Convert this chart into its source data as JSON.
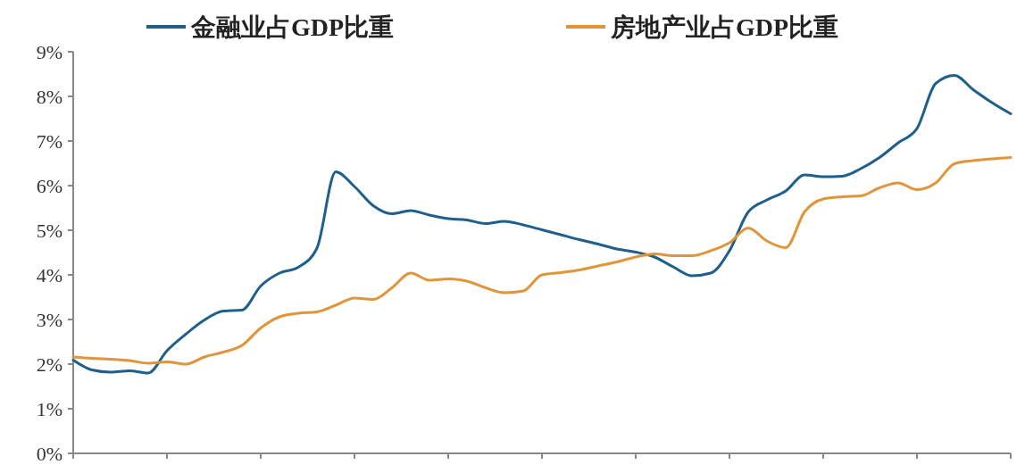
{
  "chart_data": {
    "type": "line",
    "categories": [
      null,
      null,
      null,
      null,
      null,
      null,
      null,
      null,
      null,
      null,
      null,
      null,
      null,
      null,
      null,
      null,
      null,
      null,
      null,
      null,
      null,
      null,
      null,
      null,
      null,
      null,
      null,
      null,
      null,
      null,
      null,
      null,
      null,
      null,
      null,
      null,
      null,
      null,
      null,
      null,
      null,
      null,
      null,
      null,
      null,
      null,
      null,
      null,
      null,
      null,
      null
    ],
    "series": [
      {
        "name": "金融业占GDP比重",
        "color": "#1f5f8b",
        "values": [
          2.09,
          1.87,
          1.82,
          1.85,
          1.8,
          2.3,
          2.67,
          2.99,
          3.19,
          3.21,
          3.75,
          4.04,
          4.17,
          4.6,
          6.31,
          5.98,
          5.55,
          5.37,
          5.44,
          5.34,
          5.26,
          5.23,
          5.15,
          5.2,
          5.12,
          5.01,
          4.9,
          4.79,
          4.69,
          4.58,
          4.51,
          4.4,
          4.18,
          3.98,
          4.04,
          4.54,
          5.41,
          5.68,
          5.88,
          6.24,
          6.2,
          6.21,
          6.38,
          6.63,
          6.96,
          7.28,
          8.29,
          8.47,
          8.15,
          7.86,
          7.61
        ]
      },
      {
        "name": "房地产业占GDP比重",
        "color": "#e0953a",
        "values": [
          2.16,
          2.13,
          2.11,
          2.08,
          2.02,
          2.05,
          2.0,
          2.16,
          2.27,
          2.42,
          2.81,
          3.06,
          3.14,
          3.17,
          3.32,
          3.48,
          3.45,
          3.71,
          4.04,
          3.88,
          3.91,
          3.86,
          3.71,
          3.6,
          3.64,
          4.0,
          4.05,
          4.11,
          4.2,
          4.29,
          4.4,
          4.47,
          4.43,
          4.43,
          4.54,
          4.72,
          5.05,
          4.76,
          4.61,
          5.41,
          5.7,
          5.75,
          5.77,
          5.95,
          6.06,
          5.91,
          6.06,
          6.49,
          6.56,
          6.6,
          6.63
        ]
      }
    ],
    "ylim": [
      0,
      9
    ],
    "yticks": [
      {
        "value": 0,
        "label": "0%"
      },
      {
        "value": 1,
        "label": "1%"
      },
      {
        "value": 2,
        "label": "2%"
      },
      {
        "value": 3,
        "label": "3%"
      },
      {
        "value": 4,
        "label": "4%"
      },
      {
        "value": 5,
        "label": "5%"
      },
      {
        "value": 6,
        "label": "6%"
      },
      {
        "value": 7,
        "label": "7%"
      },
      {
        "value": 8,
        "label": "8%"
      },
      {
        "value": 9,
        "label": "9%"
      }
    ],
    "legend": "top",
    "tick_labels": "y",
    "line_style": "solid",
    "marker": "none"
  }
}
